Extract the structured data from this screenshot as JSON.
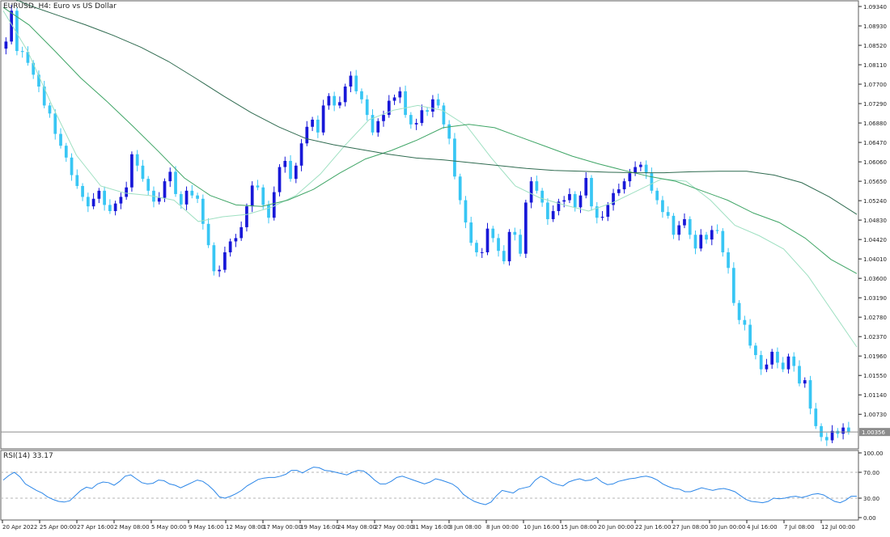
{
  "header": {
    "symbol_label": "EURUSD, H4:  Euro vs US Dollar"
  },
  "rsi_label": "RSI(14) 33.17",
  "current_price": "1.00356",
  "colors": {
    "background": "#ffffff",
    "frame": "#5e5e5e",
    "bull_candle": "#1818d8",
    "bear_candle": "#38c6f4",
    "ma_fast": "#9fe0c2",
    "ma_mid": "#3fa566",
    "ma_slow": "#2f6b50",
    "rsi_line": "#2b86e8",
    "price_line": "#8c8c8c",
    "text": "#222222"
  },
  "chart_data": [
    {
      "type": "candlestick",
      "title": "EURUSD, H4:  Euro vs US Dollar",
      "ylim": [
        1.0,
        1.0946
      ],
      "y_ticks": [
        "1.09340",
        "1.08930",
        "1.08520",
        "1.08110",
        "1.07700",
        "1.07290",
        "1.06880",
        "1.06470",
        "1.06060",
        "1.05650",
        "1.05240",
        "1.04830",
        "1.04420",
        "1.04010",
        "1.03600",
        "1.03190",
        "1.02780",
        "1.02370",
        "1.01960",
        "1.01550",
        "1.01140",
        "1.00730"
      ],
      "x_ticks": [
        "20 Apr 2022",
        "25 Apr 00:00",
        "27 Apr 16:00",
        "2 May 08:00",
        "5 May 00:00",
        "9 May 16:00",
        "12 May 08:00",
        "17 May 00:00",
        "19 May 16:00",
        "24 May 08:00",
        "27 May 00:00",
        "31 May 16:00",
        "3 Jun 08:00",
        "8 Jun 00:00",
        "10 Jun 16:00",
        "15 Jun 08:00",
        "20 Jun 00:00",
        "22 Jun 16:00",
        "27 Jun 08:00",
        "30 Jun 00:00",
        "4 Jul 16:00",
        "7 Jul 08:00",
        "12 Jul 00:00"
      ],
      "current_price": 1.00356,
      "close_path": [
        1.0845,
        1.086,
        1.0925,
        1.084,
        1.0838,
        1.0815,
        1.079,
        1.0765,
        1.0725,
        1.0708,
        1.0665,
        1.064,
        1.0615,
        1.0578,
        1.0555,
        1.0532,
        1.0512,
        1.0528,
        1.0545,
        1.0515,
        1.0502,
        1.0518,
        1.0532,
        1.0552,
        1.0622,
        1.0598,
        1.057,
        1.0545,
        1.0522,
        1.053,
        1.0565,
        1.0585,
        1.0538,
        1.0516,
        1.0545,
        1.0535,
        1.0528,
        1.0475,
        1.043,
        1.0375,
        1.0378,
        1.0415,
        1.0438,
        1.0445,
        1.0468,
        1.0512,
        1.0556,
        1.0552,
        1.0515,
        1.0488,
        1.0542,
        1.0595,
        1.0608,
        1.057,
        1.0598,
        1.0645,
        1.068,
        1.0695,
        1.0668,
        1.0725,
        1.0745,
        1.0725,
        1.0732,
        1.0765,
        1.0788,
        1.0755,
        1.0738,
        1.0705,
        1.0668,
        1.0692,
        1.0705,
        1.0735,
        1.0742,
        1.0755,
        1.0705,
        1.0685,
        1.0688,
        1.0715,
        1.0712,
        1.0738,
        1.0725,
        1.0685,
        1.0655,
        1.0575,
        1.0525,
        1.0478,
        1.0435,
        1.0415,
        1.0415,
        1.0465,
        1.0445,
        1.0418,
        1.0396,
        1.0458,
        1.0452,
        1.0412,
        1.052,
        1.0565,
        1.0545,
        1.052,
        1.0485,
        1.0502,
        1.0522,
        1.0525,
        1.0538,
        1.051,
        1.0535,
        1.0572,
        1.0512,
        1.0488,
        1.049,
        1.0515,
        1.054,
        1.0548,
        1.0565,
        1.0582,
        1.0595,
        1.06,
        1.0582,
        1.0545,
        1.0525,
        1.05,
        1.0492,
        1.0452,
        1.0472,
        1.0485,
        1.0452,
        1.0423,
        1.0452,
        1.0442,
        1.0462,
        1.046,
        1.0415,
        1.0382,
        1.0308,
        1.0272,
        1.0262,
        1.0218,
        1.0198,
        1.0168,
        1.0178,
        1.0205,
        1.0182,
        1.0168,
        1.0195,
        1.0175,
        1.0138,
        1.0145,
        1.0085,
        1.0048,
        1.0025,
        1.0018,
        1.0038,
        1.0032,
        1.0045,
        1.0036
      ],
      "series": [
        {
          "name": "MA fast",
          "values": [
            1.0925,
            1.084,
            1.0725,
            1.062,
            1.0555,
            1.054,
            1.0535,
            1.0525,
            1.048,
            1.049,
            1.0495,
            1.051,
            1.0535,
            1.058,
            1.064,
            1.0695,
            1.0715,
            1.0725,
            1.0715,
            1.0682,
            1.0615,
            1.0555,
            1.053,
            1.0515,
            1.0502,
            1.052,
            1.0545,
            1.057,
            1.0565,
            1.0525,
            1.0472,
            1.045,
            1.0422,
            1.0365,
            1.029,
            1.0215
          ]
        },
        {
          "name": "MA mid",
          "values": [
            1.0932,
            1.0895,
            1.084,
            1.0783,
            1.0734,
            1.0682,
            1.0628,
            1.0572,
            1.0535,
            1.0515,
            1.0512,
            1.0525,
            1.0548,
            1.0582,
            1.0612,
            1.063,
            1.0652,
            1.0678,
            1.0685,
            1.0678,
            1.0658,
            1.0638,
            1.0618,
            1.0602,
            1.0588,
            1.0575,
            1.0565,
            1.0545,
            1.0525,
            1.0498,
            1.0478,
            1.0445,
            1.04,
            1.037
          ]
        },
        {
          "name": "MA slow",
          "values": [
            1.096,
            1.0935,
            1.0915,
            1.0895,
            1.0873,
            1.0848,
            1.0818,
            1.0782,
            1.0745,
            1.071,
            1.068,
            1.0655,
            1.0642,
            1.0632,
            1.0622,
            1.0614,
            1.061,
            1.0604,
            1.0598,
            1.0592,
            1.0588,
            1.0586,
            1.0584,
            1.0583,
            1.0583,
            1.0585,
            1.0586,
            1.0586,
            1.0578,
            1.0562,
            1.0532,
            1.0495
          ]
        }
      ]
    },
    {
      "type": "line",
      "title": "RSI(14) 33.17",
      "ylim": [
        0,
        100
      ],
      "y_ticks": [
        "100.00",
        "70.00",
        "30.00",
        "0.00"
      ],
      "levels": [
        70,
        30
      ],
      "values": [
        58,
        65,
        70,
        63,
        52,
        47,
        42,
        38,
        32,
        28,
        25,
        24,
        26,
        34,
        42,
        47,
        45,
        52,
        55,
        54,
        50,
        56,
        64,
        66,
        60,
        54,
        52,
        53,
        58,
        57,
        52,
        50,
        46,
        50,
        54,
        58,
        56,
        50,
        42,
        32,
        30,
        33,
        37,
        42,
        49,
        54,
        59,
        61,
        62,
        62,
        64,
        67,
        73,
        73,
        69,
        74,
        78,
        77,
        73,
        72,
        70,
        68,
        66,
        70,
        73,
        72,
        66,
        58,
        52,
        52,
        56,
        62,
        64,
        61,
        58,
        55,
        52,
        55,
        60,
        58,
        55,
        52,
        46,
        36,
        30,
        25,
        22,
        20,
        24,
        34,
        42,
        40,
        38,
        44,
        46,
        48,
        58,
        64,
        60,
        54,
        51,
        49,
        55,
        58,
        60,
        57,
        58,
        62,
        55,
        51,
        52,
        56,
        58,
        60,
        61,
        63,
        64,
        62,
        58,
        52,
        48,
        45,
        44,
        40,
        40,
        43,
        46,
        44,
        42,
        44,
        45,
        43,
        40,
        34,
        28,
        25,
        24,
        23,
        25,
        30,
        29,
        30,
        32,
        33,
        31,
        33,
        36,
        37,
        35,
        30,
        25,
        23,
        27,
        33,
        33
      ]
    }
  ]
}
